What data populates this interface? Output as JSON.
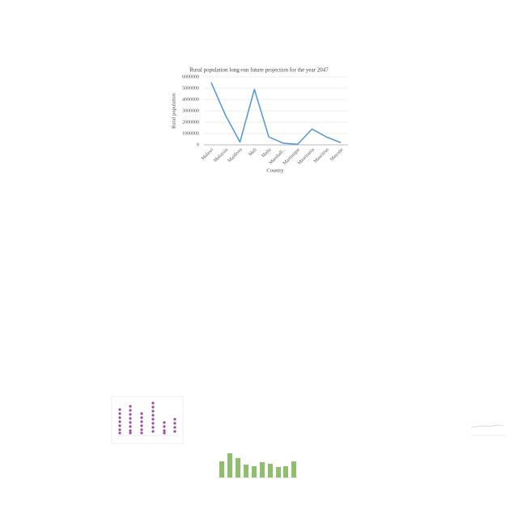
{
  "chart_data": {
    "type": "line",
    "title": "Rural population long-run future projection for the year 2047",
    "x_label": "Country",
    "y_label": "Rural population",
    "categories": [
      "Malawi",
      "Malaysia",
      "Maldives",
      "Mali",
      "Malta",
      "Marshall...",
      "Martinique",
      "Mauritania",
      "Mauritius",
      "Mayotte"
    ],
    "series": [
      {
        "name": "Rural population",
        "color": "#5b9bd5",
        "values": [
          5500000,
          2600000,
          250000,
          4900000,
          700000,
          150000,
          50000,
          1400000,
          700000,
          200000
        ]
      }
    ],
    "ylim": [
      0,
      6000000
    ],
    "yticks": [
      0,
      1000000,
      2000000,
      3000000,
      4000000,
      5000000,
      6000000
    ],
    "grid": true
  }
}
